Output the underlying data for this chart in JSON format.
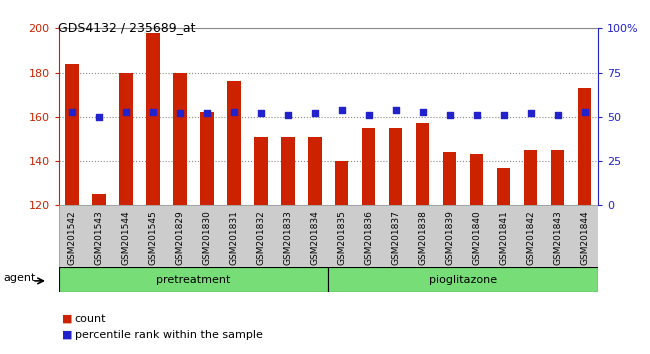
{
  "title": "GDS4132 / 235689_at",
  "categories": [
    "GSM201542",
    "GSM201543",
    "GSM201544",
    "GSM201545",
    "GSM201829",
    "GSM201830",
    "GSM201831",
    "GSM201832",
    "GSM201833",
    "GSM201834",
    "GSM201835",
    "GSM201836",
    "GSM201837",
    "GSM201838",
    "GSM201839",
    "GSM201840",
    "GSM201841",
    "GSM201842",
    "GSM201843",
    "GSM201844"
  ],
  "bar_values": [
    184,
    125,
    180,
    198,
    180,
    162,
    176,
    151,
    151,
    151,
    140,
    155,
    155,
    157,
    144,
    143,
    137,
    145,
    145,
    173
  ],
  "percentile_values": [
    53,
    50,
    53,
    53,
    52,
    52,
    53,
    52,
    51,
    52,
    54,
    51,
    54,
    53,
    51,
    51,
    51,
    52,
    51,
    53
  ],
  "bar_color": "#cc2200",
  "percentile_color": "#2222cc",
  "ylim_left": [
    120,
    200
  ],
  "ylim_right": [
    0,
    100
  ],
  "yticks_left": [
    120,
    140,
    160,
    180,
    200
  ],
  "yticks_right": [
    0,
    25,
    50,
    75,
    100
  ],
  "ytick_labels_right": [
    "0",
    "25",
    "50",
    "75",
    "100%"
  ],
  "group1_label": "pretreatment",
  "group2_label": "pioglitazone",
  "group1_count": 10,
  "group2_count": 10,
  "agent_label": "agent",
  "legend_count": "count",
  "legend_percentile": "percentile rank within the sample",
  "grid_color": "#888888",
  "background_color": "#ffffff",
  "bar_bottom": 120,
  "group_color": "#77dd77",
  "xtick_bg_color": "#cccccc"
}
